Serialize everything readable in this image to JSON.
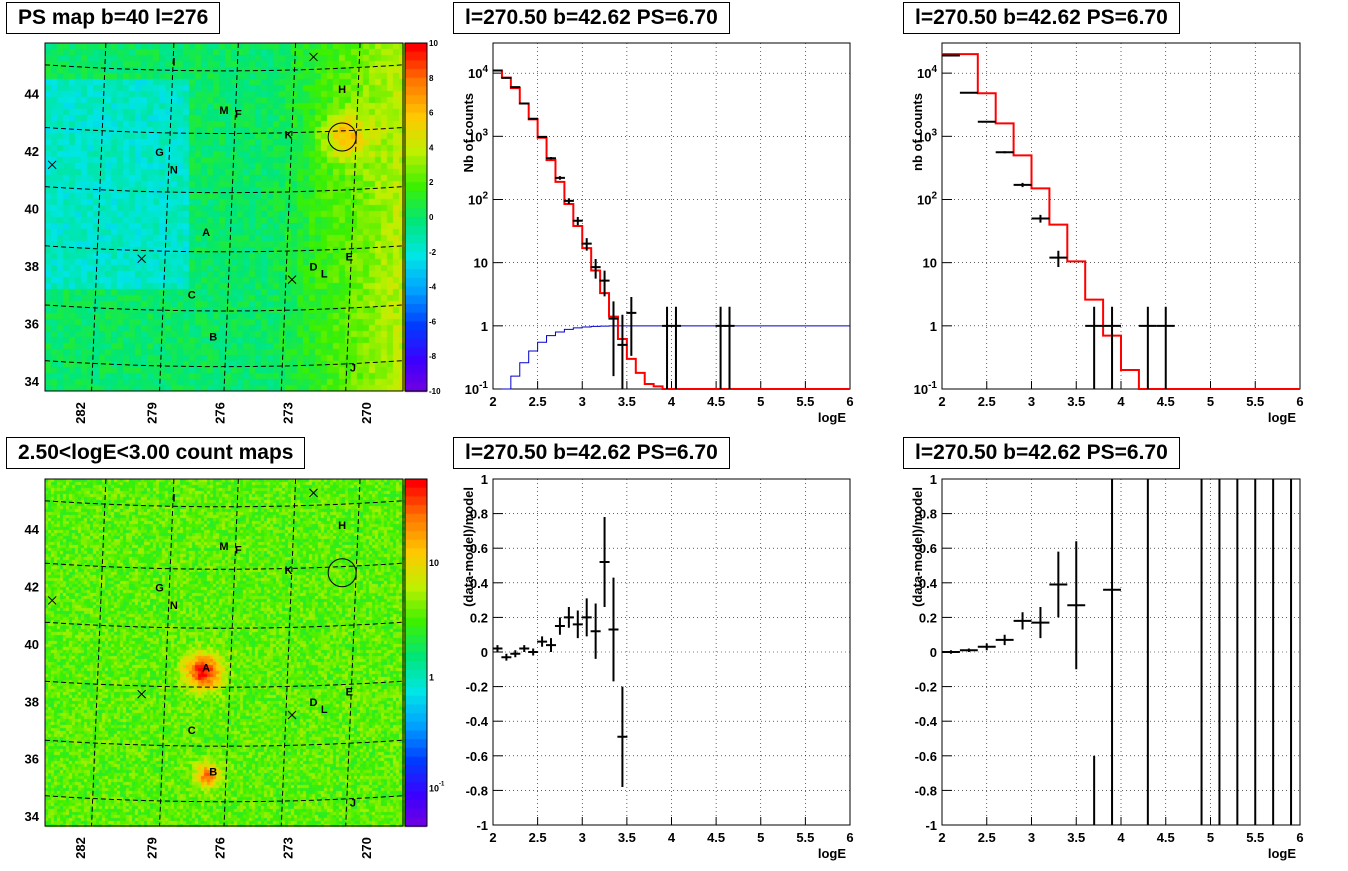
{
  "panels": {
    "map1_title": "PS map b=40 l=276",
    "map2_title": "2.50<logE<3.00 count maps",
    "spec1_title": "l=270.50 b=42.62 PS=6.70",
    "spec2_title": "l=270.50 b=42.62 PS=6.70",
    "res1_title": "l=270.50 b=42.62 PS=6.70",
    "res2_title": "l=270.50 b=42.62 PS=6.70"
  },
  "colors": {
    "model_line": "#ff0000",
    "exposure_line": "#0000cc",
    "data_points": "#000000",
    "grid": "#000000"
  },
  "chart_data": [
    {
      "id": "map1",
      "type": "heatmap",
      "title": "PS map b=40 l=276",
      "xlabel": "",
      "ylabel": "",
      "x_ticks": [
        "282",
        "279",
        "276",
        "273",
        "270"
      ],
      "y_ticks": [
        "34",
        "36",
        "38",
        "40",
        "42",
        "44"
      ],
      "colorbar_ticks": [
        "-10",
        "-8",
        "-6",
        "-4",
        "-2",
        "0",
        "2",
        "4",
        "6",
        "8",
        "10"
      ],
      "colorbar_range": [
        -10,
        10
      ],
      "sources": [
        "I",
        "H",
        "M",
        "F",
        "K",
        "G",
        "N",
        "A",
        "E",
        "D",
        "L",
        "C",
        "B",
        "J"
      ],
      "hot_region": "right side, near l=270.5 b=42.6 (circled)"
    },
    {
      "id": "map2",
      "type": "heatmap",
      "title": "2.50<logE<3.00 count maps",
      "x_ticks": [
        "282",
        "279",
        "276",
        "273",
        "270"
      ],
      "y_ticks": [
        "34",
        "36",
        "38",
        "40",
        "42",
        "44"
      ],
      "colorbar_ticks": [
        "10",
        "1",
        "10^-1"
      ],
      "colorbar_scale": "log",
      "sources": [
        "I",
        "H",
        "M",
        "F",
        "K",
        "G",
        "N",
        "A",
        "E",
        "D",
        "L",
        "C",
        "B",
        "J"
      ],
      "bright_sources": [
        "A",
        "B"
      ]
    },
    {
      "id": "spec1",
      "type": "line",
      "title": "l=270.50 b=42.62 PS=6.70",
      "xlabel": "logE",
      "ylabel": "Nb of counts",
      "xlim": [
        2,
        6
      ],
      "ylim": [
        0.1,
        30000
      ],
      "y_scale": "log",
      "x_ticks": [
        "2",
        "2.5",
        "3",
        "3.5",
        "4",
        "4.5",
        "5",
        "5.5",
        "6"
      ],
      "y_ticks": [
        "10^-1",
        "1",
        "10",
        "10^2",
        "10^3",
        "10^4"
      ],
      "grid": true,
      "model_edges": [
        2.0,
        2.1,
        2.2,
        2.3,
        2.4,
        2.5,
        2.6,
        2.7,
        2.8,
        2.9,
        3.0,
        3.1,
        3.2,
        3.3,
        3.4,
        3.5,
        3.6,
        3.7,
        3.8,
        3.9,
        4.0,
        4.1,
        4.2,
        6.0
      ],
      "model_values": [
        11000,
        8500,
        5800,
        3300,
        1850,
        950,
        420,
        190,
        85,
        38,
        17,
        7.5,
        3.3,
        1.4,
        0.62,
        0.3,
        0.18,
        0.12,
        0.11,
        0.1,
        0.1,
        0.1,
        0.1
      ],
      "exposure_edges": [
        2.1,
        2.2,
        2.3,
        2.4,
        2.5,
        2.6,
        2.7,
        2.8,
        2.9,
        3.0,
        3.1,
        3.2,
        3.3,
        3.4,
        3.5,
        6.0
      ],
      "exposure_values": [
        0.1,
        0.16,
        0.26,
        0.4,
        0.55,
        0.7,
        0.8,
        0.88,
        0.93,
        0.96,
        0.98,
        0.99,
        1.0,
        1.0,
        1.0
      ],
      "points": [
        {
          "x": 2.05,
          "y": 11000
        },
        {
          "x": 2.15,
          "y": 8400
        },
        {
          "x": 2.25,
          "y": 6000
        },
        {
          "x": 2.35,
          "y": 3300
        },
        {
          "x": 2.45,
          "y": 1900
        },
        {
          "x": 2.55,
          "y": 980
        },
        {
          "x": 2.65,
          "y": 450
        },
        {
          "x": 2.75,
          "y": 220
        },
        {
          "x": 2.85,
          "y": 95
        },
        {
          "x": 2.95,
          "y": 46
        },
        {
          "x": 3.05,
          "y": 20
        },
        {
          "x": 3.15,
          "y": 8.5
        },
        {
          "x": 3.25,
          "y": 5.2
        },
        {
          "x": 3.35,
          "y": 1.3
        },
        {
          "x": 3.45,
          "y": 0.5
        },
        {
          "x": 3.55,
          "y": 1.6
        },
        {
          "x": 3.95,
          "y": 1
        },
        {
          "x": 4.05,
          "y": 1
        },
        {
          "x": 4.55,
          "y": 1
        },
        {
          "x": 4.65,
          "y": 1
        }
      ]
    },
    {
      "id": "spec2",
      "type": "line",
      "title": "l=270.50 b=42.62 PS=6.70",
      "xlabel": "logE",
      "ylabel": "nb of counts",
      "xlim": [
        2,
        6
      ],
      "ylim": [
        0.1,
        30000
      ],
      "y_scale": "log",
      "x_ticks": [
        "2",
        "2.5",
        "3",
        "3.5",
        "4",
        "4.5",
        "5",
        "5.5",
        "6"
      ],
      "y_ticks": [
        "10^-1",
        "1",
        "10",
        "10^2",
        "10^3",
        "10^4"
      ],
      "grid": true,
      "model_edges": [
        2.0,
        2.2,
        2.4,
        2.6,
        2.8,
        3.0,
        3.2,
        3.4,
        3.6,
        3.8,
        4.0,
        4.2,
        6.0
      ],
      "model_values": [
        20000,
        20000,
        4800,
        1600,
        500,
        150,
        40,
        10.5,
        2.6,
        0.7,
        0.2,
        0.1
      ],
      "points": [
        {
          "x": 2.1,
          "y": 19000,
          "xerr": 0.1
        },
        {
          "x": 2.3,
          "y": 4900,
          "xerr": 0.1
        },
        {
          "x": 2.5,
          "y": 1700,
          "xerr": 0.1
        },
        {
          "x": 2.7,
          "y": 560,
          "xerr": 0.1
        },
        {
          "x": 2.9,
          "y": 170,
          "xerr": 0.1
        },
        {
          "x": 3.1,
          "y": 50,
          "xerr": 0.1
        },
        {
          "x": 3.3,
          "y": 12,
          "xerr": 0.1
        },
        {
          "x": 3.7,
          "y": 1,
          "xerr": 0.1
        },
        {
          "x": 3.9,
          "y": 1,
          "xerr": 0.1
        },
        {
          "x": 4.3,
          "y": 1,
          "xerr": 0.1
        },
        {
          "x": 4.5,
          "y": 1,
          "xerr": 0.1
        }
      ]
    },
    {
      "id": "res1",
      "type": "scatter",
      "title": "l=270.50 b=42.62 PS=6.70",
      "xlabel": "logE",
      "ylabel": "(data-model)/model",
      "xlim": [
        2,
        6
      ],
      "ylim": [
        -1,
        1
      ],
      "x_ticks": [
        "2",
        "2.5",
        "3",
        "3.5",
        "4",
        "4.5",
        "5",
        "5.5",
        "6"
      ],
      "y_ticks": [
        "-1",
        "-0.8",
        "-0.6",
        "-0.4",
        "-0.2",
        "0",
        "0.2",
        "0.4",
        "0.6",
        "0.8",
        "1"
      ],
      "grid": true,
      "points": [
        {
          "x": 2.05,
          "y": 0.02,
          "err": 0.02
        },
        {
          "x": 2.15,
          "y": -0.03,
          "err": 0.02
        },
        {
          "x": 2.25,
          "y": -0.01,
          "err": 0.02
        },
        {
          "x": 2.35,
          "y": 0.02,
          "err": 0.02
        },
        {
          "x": 2.45,
          "y": 0.0,
          "err": 0.02
        },
        {
          "x": 2.55,
          "y": 0.06,
          "err": 0.03
        },
        {
          "x": 2.65,
          "y": 0.04,
          "err": 0.04
        },
        {
          "x": 2.75,
          "y": 0.15,
          "err": 0.05
        },
        {
          "x": 2.85,
          "y": 0.2,
          "err": 0.06
        },
        {
          "x": 2.95,
          "y": 0.16,
          "err": 0.08
        },
        {
          "x": 3.05,
          "y": 0.2,
          "err": 0.11
        },
        {
          "x": 3.15,
          "y": 0.12,
          "err": 0.16
        },
        {
          "x": 3.25,
          "y": 0.52,
          "err": 0.26
        },
        {
          "x": 3.35,
          "y": 0.13,
          "err": 0.3
        },
        {
          "x": 3.45,
          "y": -0.49,
          "err": 0.29
        }
      ]
    },
    {
      "id": "res2",
      "type": "scatter",
      "title": "l=270.50 b=42.62 PS=6.70",
      "xlabel": "logE",
      "ylabel": "(data-model)/model",
      "xlim": [
        2,
        6
      ],
      "ylim": [
        -1,
        1
      ],
      "x_ticks": [
        "2",
        "2.5",
        "3",
        "3.5",
        "4",
        "4.5",
        "5",
        "5.5",
        "6"
      ],
      "y_ticks": [
        "-1",
        "-0.8",
        "-0.6",
        "-0.4",
        "-0.2",
        "0",
        "0.2",
        "0.4",
        "0.6",
        "0.8",
        "1"
      ],
      "grid": true,
      "points": [
        {
          "x": 2.1,
          "y": 0.0,
          "err": 0.01,
          "xerr": 0.1
        },
        {
          "x": 2.3,
          "y": 0.01,
          "err": 0.01,
          "xerr": 0.1
        },
        {
          "x": 2.5,
          "y": 0.03,
          "err": 0.02,
          "xerr": 0.1
        },
        {
          "x": 2.7,
          "y": 0.07,
          "err": 0.03,
          "xerr": 0.1
        },
        {
          "x": 2.9,
          "y": 0.18,
          "err": 0.05,
          "xerr": 0.1
        },
        {
          "x": 3.1,
          "y": 0.17,
          "err": 0.09,
          "xerr": 0.1
        },
        {
          "x": 3.3,
          "y": 0.39,
          "err": 0.19,
          "xerr": 0.1
        },
        {
          "x": 3.5,
          "y": 0.27,
          "err": 0.37,
          "xerr": 0.1
        },
        {
          "x": 3.9,
          "y": 0.36,
          "err": 1.5,
          "xerr": 0.1
        }
      ],
      "vertical_bars_x": [
        3.7,
        4.3,
        4.9,
        5.1,
        5.3,
        5.5,
        5.7,
        5.9
      ]
    }
  ]
}
